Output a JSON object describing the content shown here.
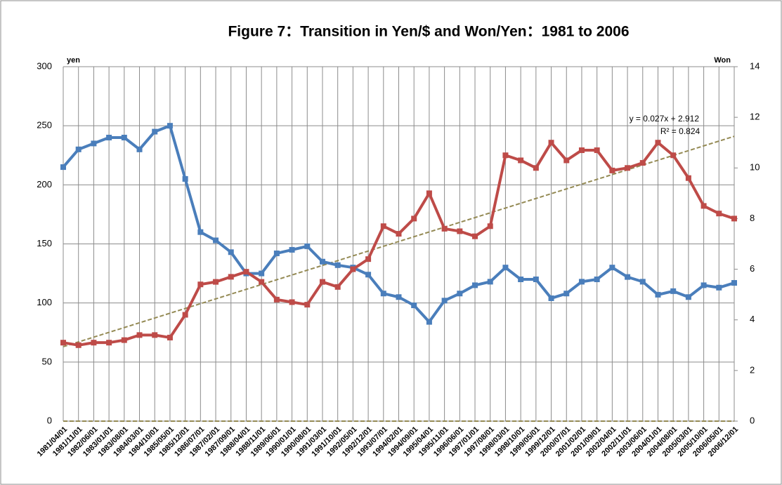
{
  "chart_data": {
    "type": "line",
    "title": "Figure 7：Transition in Yen/$ and Won/Yen：1981 to 2006",
    "y_label": "yen",
    "y2_label": "Won",
    "categories": [
      "1981/04/01",
      "1981/11/01",
      "1982/06/01",
      "1983/01/01",
      "1983/08/01",
      "1984/03/01",
      "1984/10/01",
      "1985/05/01",
      "1985/12/01",
      "1986/07/01",
      "1987/02/01",
      "1987/09/01",
      "1988/04/01",
      "1988/11/01",
      "1989/06/01",
      "1990/01/01",
      "1990/08/01",
      "1991/03/01",
      "1991/10/01",
      "1992/05/01",
      "1992/12/01",
      "1993/07/01",
      "1994/02/01",
      "1994/09/01",
      "1995/04/01",
      "1995/11/01",
      "1996/06/01",
      "1997/01/01",
      "1997/08/01",
      "1998/03/01",
      "1998/10/01",
      "1999/05/01",
      "1999/12/01",
      "2000/07/01",
      "2001/02/01",
      "2001/09/01",
      "2002/04/01",
      "2002/11/01",
      "2003/06/01",
      "2004/01/01",
      "2004/08/01",
      "2005/03/01",
      "2005/10/01",
      "2006/05/01",
      "2006/12/01"
    ],
    "series": [
      {
        "name": "Yen/$",
        "color": "#4a7ebb",
        "values": [
          215,
          230,
          235,
          240,
          240,
          230,
          245,
          250,
          205,
          160,
          153,
          143,
          125,
          125,
          142,
          145,
          148,
          135,
          132,
          130,
          124,
          108,
          105,
          98,
          84,
          102,
          108,
          115,
          118,
          130,
          120,
          120,
          104,
          108,
          118,
          120,
          130,
          122,
          118,
          107,
          110,
          105,
          115,
          113,
          117
        ]
      },
      {
        "name": "Won/Yen",
        "color": "#be4b48",
        "axis": "y2",
        "values": [
          3.1,
          3.0,
          3.1,
          3.1,
          3.2,
          3.4,
          3.4,
          3.3,
          4.2,
          5.4,
          5.5,
          5.7,
          5.9,
          5.5,
          4.8,
          4.7,
          4.6,
          5.5,
          5.3,
          6.0,
          6.4,
          7.7,
          7.4,
          8.0,
          9.0,
          7.6,
          7.5,
          7.3,
          7.7,
          10.5,
          10.3,
          10.0,
          11.0,
          10.3,
          10.7,
          10.7,
          9.9,
          10.0,
          10.2,
          11.0,
          10.5,
          9.6,
          8.5,
          8.2,
          8.0
        ]
      }
    ],
    "trendline": {
      "color": "#948a54",
      "axis": "y2",
      "start": 2.94,
      "end": 11.25,
      "equation": "y = 0.027x + 2.912",
      "r_squared": "R² = 0.824"
    },
    "ylim": [
      0,
      300
    ],
    "yticks": [
      0,
      50,
      100,
      150,
      200,
      250,
      300
    ],
    "y2lim": [
      0,
      14
    ],
    "y2ticks": [
      0,
      2,
      4,
      6,
      8,
      10,
      12,
      14
    ],
    "grid": true
  }
}
